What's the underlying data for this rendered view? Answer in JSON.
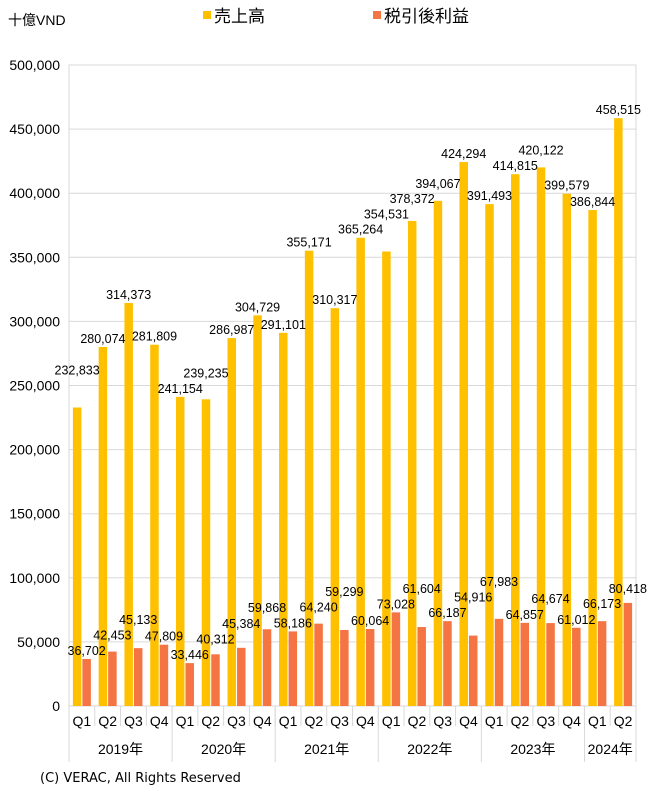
{
  "chart_data": {
    "type": "bar",
    "ylabel": "十億VND",
    "ylim": [
      0,
      500000
    ],
    "yticks": [
      "0",
      "50,000",
      "100,000",
      "150,000",
      "200,000",
      "250,000",
      "300,000",
      "350,000",
      "400,000",
      "450,000",
      "500,000"
    ],
    "grid": true,
    "legend_position": "top",
    "groups": [
      {
        "label": "2019年",
        "quarters": [
          "Q1",
          "Q2",
          "Q3",
          "Q4"
        ]
      },
      {
        "label": "2020年",
        "quarters": [
          "Q1",
          "Q2",
          "Q3",
          "Q4"
        ]
      },
      {
        "label": "2021年",
        "quarters": [
          "Q1",
          "Q2",
          "Q3",
          "Q4"
        ]
      },
      {
        "label": "2022年",
        "quarters": [
          "Q1",
          "Q2",
          "Q3",
          "Q4"
        ]
      },
      {
        "label": "2023年",
        "quarters": [
          "Q1",
          "Q2",
          "Q3",
          "Q4"
        ]
      },
      {
        "label": "2024年",
        "quarters": [
          "Q1",
          "Q2"
        ]
      }
    ],
    "series": [
      {
        "name": "売上高",
        "color": "#FFC000",
        "values": [
          232833,
          280074,
          314373,
          281809,
          241154,
          239235,
          286987,
          304729,
          291101,
          355171,
          310317,
          365264,
          354531,
          378372,
          394067,
          424294,
          391493,
          414815,
          420122,
          399579,
          386844,
          458515
        ]
      },
      {
        "name": "税引後利益",
        "color": "#F47444",
        "values": [
          36702,
          42453,
          45133,
          47809,
          33446,
          40312,
          45384,
          59868,
          58186,
          64240,
          59299,
          60064,
          73028,
          61604,
          66187,
          54916,
          67983,
          64857,
          64674,
          61012,
          66173,
          80418
        ]
      }
    ]
  },
  "footer": "(C) VERAC, All Rights Reserved"
}
